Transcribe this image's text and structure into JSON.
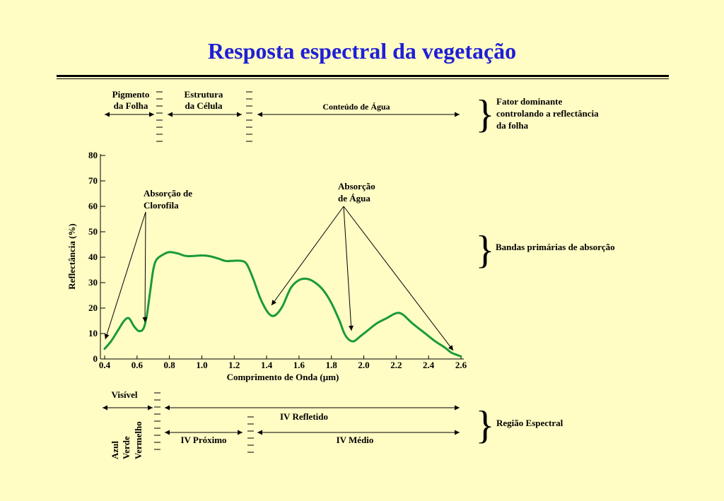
{
  "title": "Resposta espectral da vegetação",
  "top_section": {
    "pigment_label_1": "Pigmento",
    "pigment_label_2": "da Folha",
    "structure_label_1": "Estrutura",
    "structure_label_2": "da Célula",
    "water_content_label": "Conteúdo de Água",
    "brace_text_1": "Fator dominante",
    "brace_text_2": "controlando a reflectância",
    "brace_text_3": "da folha"
  },
  "annotations": {
    "chlorophyll_1": "Absorção de",
    "chlorophyll_2": "Clorofila",
    "water_1": "Absorção",
    "water_2": "de Água",
    "primary_bands": "Bandas primárias de absorção"
  },
  "bottom_section": {
    "visible": "Visível",
    "blue": "Azul",
    "green": "Verde",
    "red": "Vermelho",
    "ir_reflected": "IV Refletido",
    "ir_near": "IV Próximo",
    "ir_mid": "IV Médio",
    "spectral_region": "Região Espectral"
  },
  "chart_data": {
    "type": "line",
    "xlabel": "Comprimento de Onda (µm)",
    "ylabel": "Reflectância (%)",
    "xlim": [
      0.4,
      2.6
    ],
    "ylim": [
      0,
      80
    ],
    "x_ticks": [
      "0.4",
      "0.6",
      "0.8",
      "1.0",
      "1.2",
      "1.4",
      "1.6",
      "1.8",
      "2.0",
      "2.2",
      "2.4",
      "2.6"
    ],
    "y_ticks": [
      "0",
      "10",
      "20",
      "30",
      "40",
      "50",
      "60",
      "70",
      "80"
    ],
    "line_color": "#1a9a3a",
    "series": [
      {
        "x": [
          0.4,
          0.44,
          0.48,
          0.52,
          0.55,
          0.58,
          0.61,
          0.64,
          0.66,
          0.68,
          0.7,
          0.72,
          0.76,
          0.8,
          0.85,
          0.9,
          0.95,
          1.0,
          1.05,
          1.1,
          1.15,
          1.2,
          1.25,
          1.28,
          1.32,
          1.36,
          1.4,
          1.43,
          1.46,
          1.5,
          1.55,
          1.6,
          1.65,
          1.7,
          1.75,
          1.8,
          1.85,
          1.88,
          1.91,
          1.94,
          1.98,
          2.02,
          2.08,
          2.14,
          2.2,
          2.24,
          2.3,
          2.38,
          2.44,
          2.5,
          2.54,
          2.58,
          2.6
        ],
        "y": [
          4,
          7,
          11,
          15,
          16,
          13,
          11,
          12,
          17,
          26,
          35,
          39,
          41,
          42,
          41.5,
          40.5,
          40.5,
          40.7,
          40.4,
          39.5,
          38.5,
          38.6,
          38.5,
          37,
          31,
          24,
          19,
          17,
          17.5,
          21,
          28,
          31,
          31.5,
          30,
          27,
          22,
          15,
          10,
          7.5,
          7,
          9,
          11,
          14,
          16,
          18,
          17.5,
          14,
          10,
          7,
          4.5,
          2.5,
          1.5,
          1
        ]
      }
    ]
  }
}
